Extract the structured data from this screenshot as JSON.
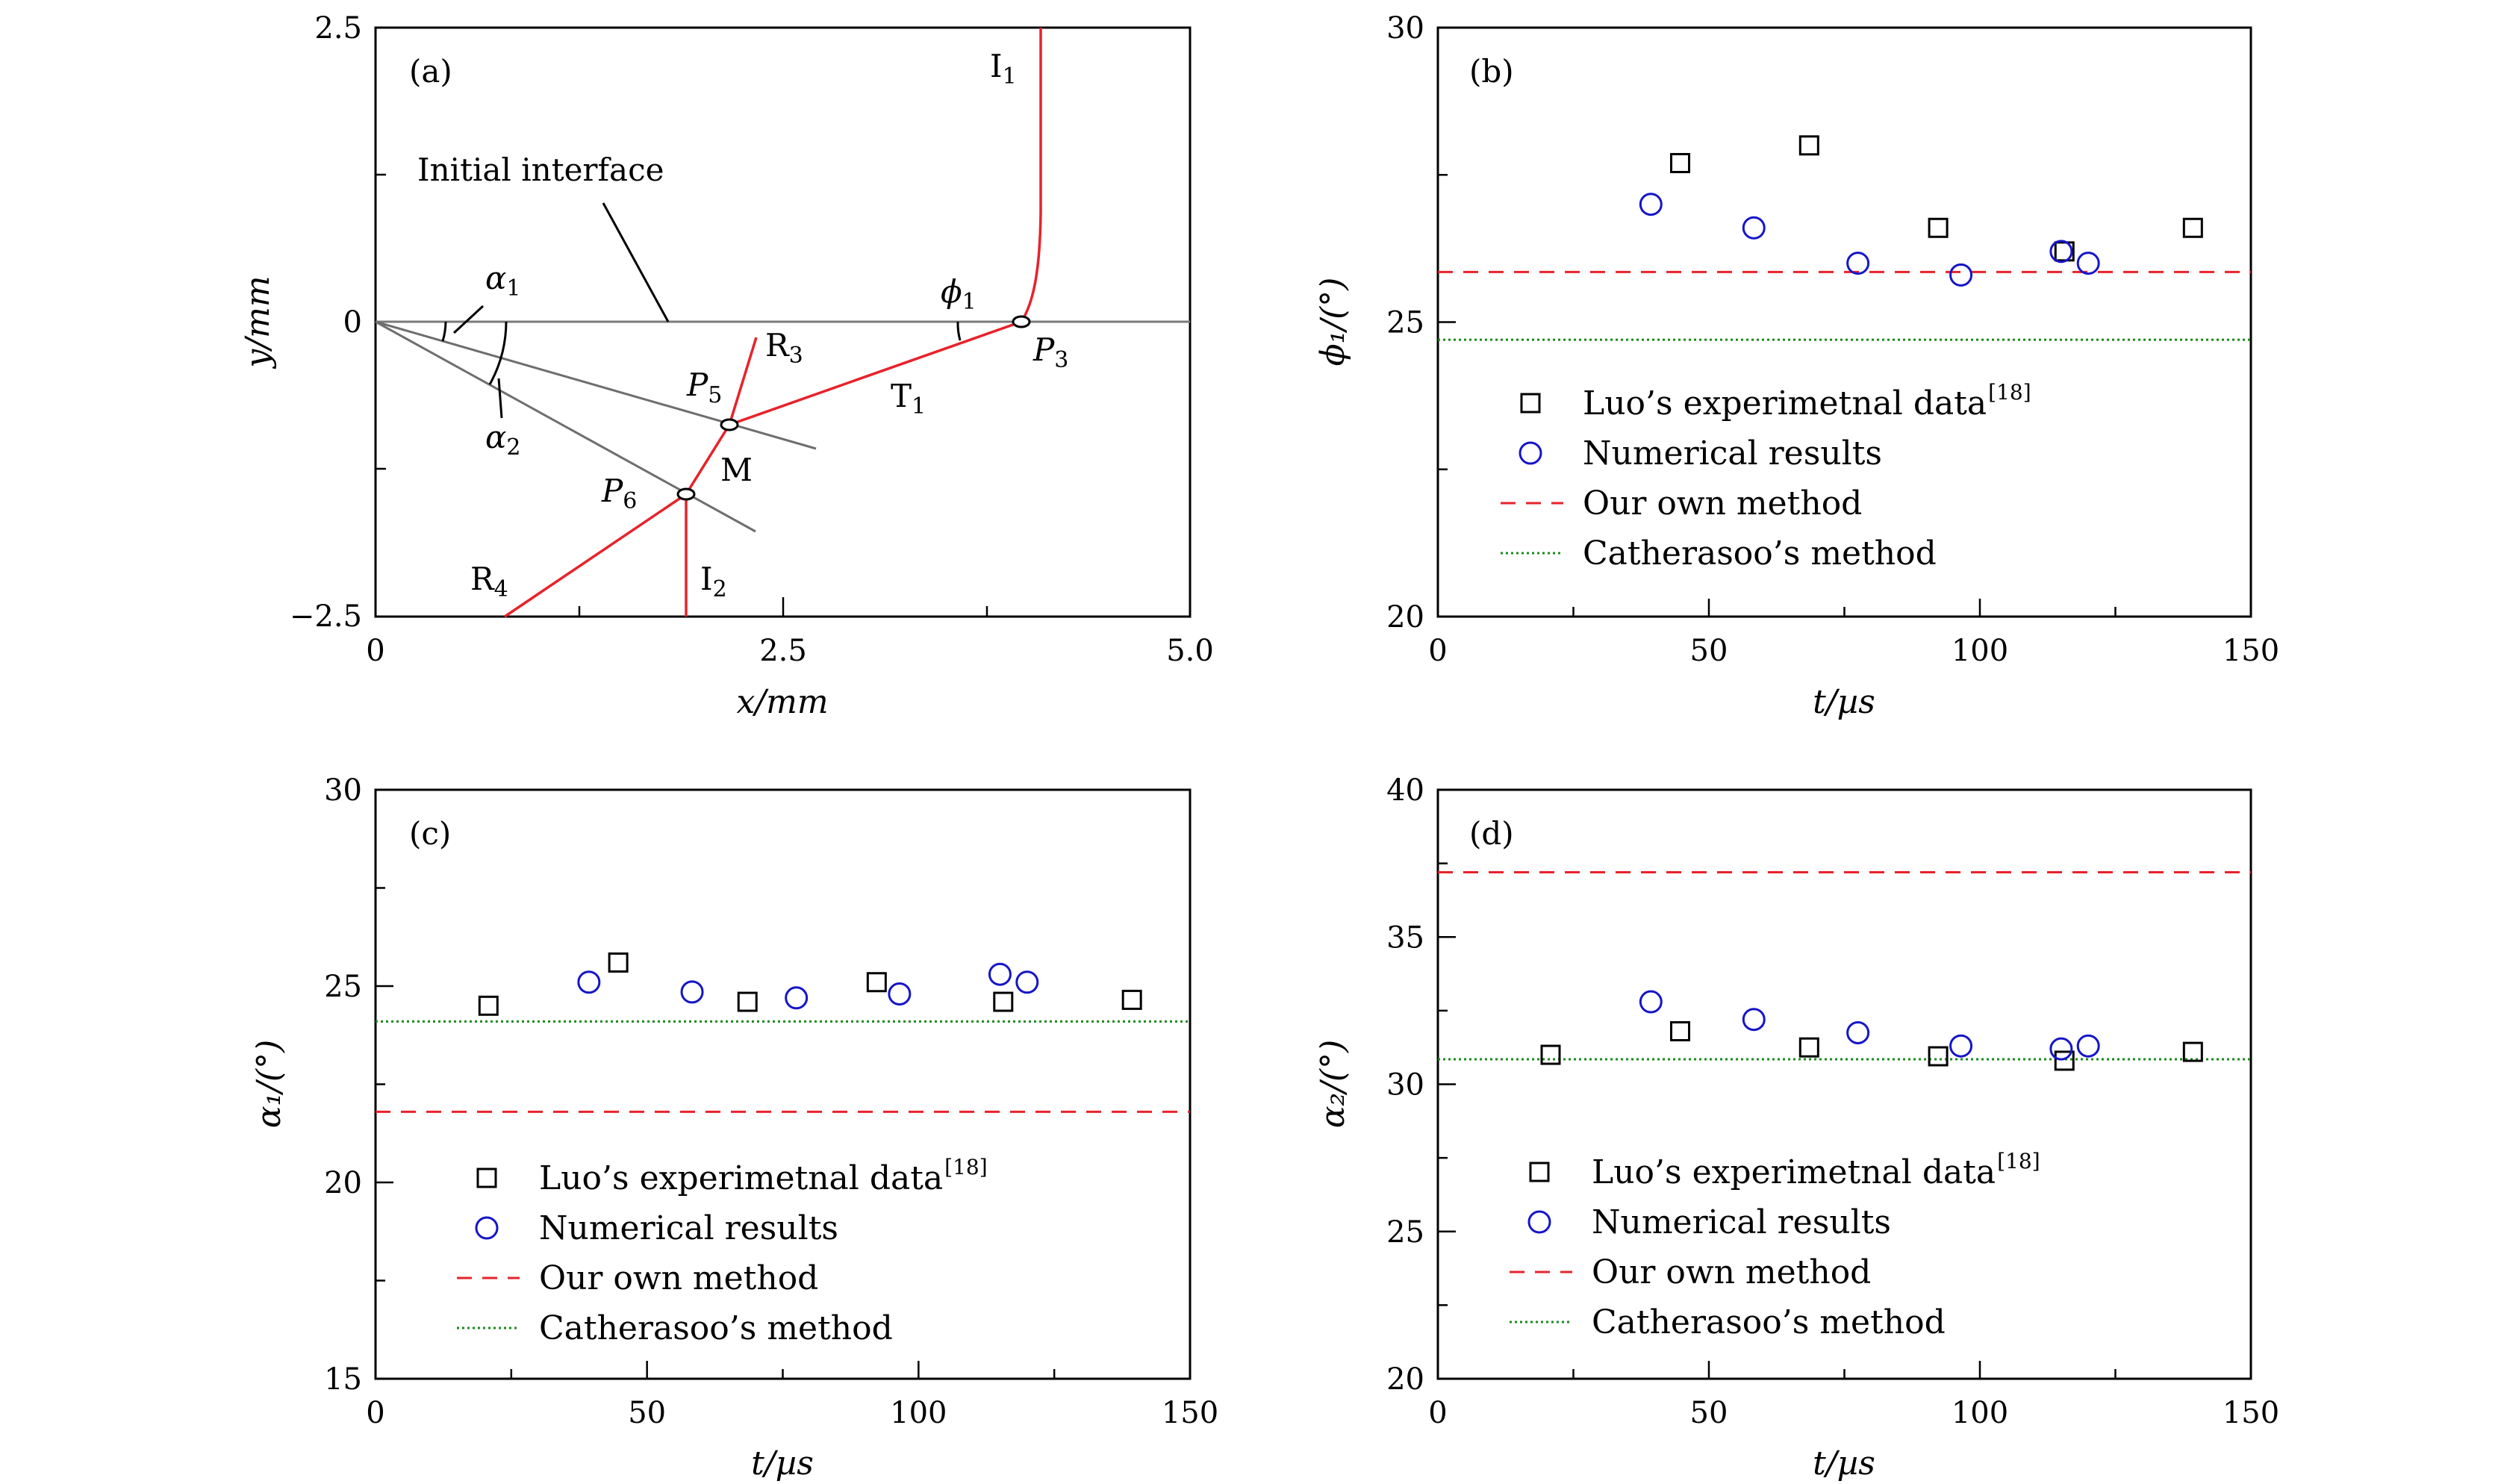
{
  "chart_data": [
    {
      "panel": "(a)",
      "type": "diagram",
      "xlabel": "x/mm",
      "ylabel": "y/mm",
      "xlim": [
        0,
        5.0
      ],
      "ylim": [
        -2.5,
        2.5
      ],
      "xticks": [
        "0",
        "2.5",
        "5.0"
      ],
      "yticks": [
        "2.5",
        "0",
        "−2.5"
      ],
      "annotations": {
        "initial_interface": "Initial interface",
        "alpha1": "α",
        "alpha1_sub": "1",
        "alpha2": "α",
        "alpha2_sub": "2",
        "phi1": "ϕ",
        "phi1_sub": "1",
        "I1": "I",
        "I1_sub": "1",
        "I2": "I",
        "I2_sub": "2",
        "R3": "R",
        "R3_sub": "3",
        "R4": "R",
        "R4_sub": "4",
        "T1": "T",
        "T1_sub": "1",
        "P3": "P",
        "P3_sub": "3",
        "P5": "P",
        "P5_sub": "5",
        "P6": "P",
        "P6_sub": "6",
        "M": "M"
      },
      "colors": {
        "wave": "#e8222a",
        "line": "#777777"
      }
    },
    {
      "panel": "(b)",
      "type": "scatter",
      "xlabel": "t/µs",
      "ylabel": "ϕ₁/(°)",
      "xlim": [
        0,
        150
      ],
      "ylim": [
        20,
        30
      ],
      "xticks": [
        "0",
        "50",
        "100",
        "150"
      ],
      "yticks": [
        "30",
        "25",
        "20"
      ],
      "series": [
        {
          "name": "Luo’s experimetnal data",
          "sup": "[18]",
          "marker": "square",
          "color": "#000000",
          "x": [
            44.7,
            68.5,
            92.3,
            115.6,
            139.3
          ],
          "y": [
            27.7,
            28.0,
            26.6,
            26.2,
            26.6
          ]
        },
        {
          "name": "Numerical results",
          "marker": "circle",
          "color": "#1515c8",
          "x": [
            39.3,
            58.3,
            77.5,
            96.5,
            115.0,
            120.0
          ],
          "y": [
            27.0,
            26.6,
            26.0,
            25.8,
            26.2,
            26.0
          ]
        },
        {
          "name": "Our own method",
          "type": "hline",
          "dash": "dashed",
          "color": "#e8222a",
          "y": 25.85
        },
        {
          "name": "Catherasoo’s method",
          "type": "hline",
          "dash": "dotted",
          "color": "#1a8a1a",
          "y": 24.7
        }
      ]
    },
    {
      "panel": "(c)",
      "type": "scatter",
      "xlabel": "t/µs",
      "ylabel": "α₁/(°)",
      "xlim": [
        0,
        150
      ],
      "ylim": [
        15,
        30
      ],
      "xticks": [
        "0",
        "50",
        "100",
        "150"
      ],
      "yticks": [
        "30",
        "25",
        "20",
        "15"
      ],
      "series": [
        {
          "name": "Luo’s experimetnal data",
          "sup": "[18]",
          "marker": "square",
          "color": "#000000",
          "x": [
            20.8,
            44.7,
            68.5,
            92.3,
            115.6,
            139.3
          ],
          "y": [
            24.5,
            25.6,
            24.6,
            25.1,
            24.6,
            24.65
          ]
        },
        {
          "name": "Numerical results",
          "marker": "circle",
          "color": "#1515c8",
          "x": [
            39.3,
            58.3,
            77.5,
            96.5,
            115.0,
            120.0
          ],
          "y": [
            25.1,
            24.85,
            24.7,
            24.8,
            25.3,
            25.1
          ]
        },
        {
          "name": "Our own method",
          "type": "hline",
          "dash": "dashed",
          "color": "#e8222a",
          "y": 21.8
        },
        {
          "name": "Catherasoo’s method",
          "type": "hline",
          "dash": "dotted",
          "color": "#1a8a1a",
          "y": 24.1
        }
      ]
    },
    {
      "panel": "(d)",
      "type": "scatter",
      "xlabel": "t/µs",
      "ylabel": "α₂/(°)",
      "xlim": [
        0,
        150
      ],
      "ylim": [
        20,
        40
      ],
      "xticks": [
        "0",
        "50",
        "100",
        "150"
      ],
      "yticks": [
        "40",
        "35",
        "30",
        "25",
        "20"
      ],
      "series": [
        {
          "name": "Luo’s experimetnal data",
          "sup": "[18]",
          "marker": "square",
          "color": "#000000",
          "x": [
            20.8,
            44.7,
            68.5,
            92.3,
            115.6,
            139.3
          ],
          "y": [
            31.0,
            31.8,
            31.25,
            30.95,
            30.8,
            31.1
          ]
        },
        {
          "name": "Numerical results",
          "marker": "circle",
          "color": "#1515c8",
          "x": [
            39.3,
            58.3,
            77.5,
            96.5,
            115.0,
            120.0
          ],
          "y": [
            32.8,
            32.2,
            31.75,
            31.3,
            31.2,
            31.3
          ]
        },
        {
          "name": "Our own method",
          "type": "hline",
          "dash": "dashed",
          "color": "#e8222a",
          "y": 37.2
        },
        {
          "name": "Catherasoo’s method",
          "type": "hline",
          "dash": "dotted",
          "color": "#1a8a1a",
          "y": 30.85
        }
      ]
    }
  ]
}
